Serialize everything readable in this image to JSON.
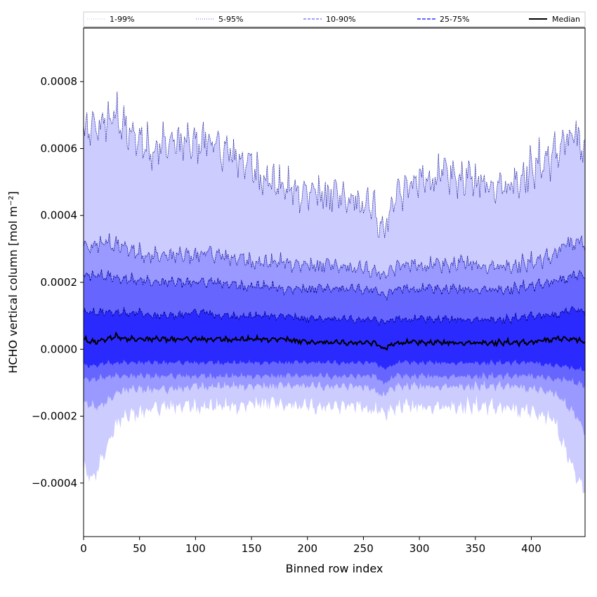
{
  "chart_data": {
    "type": "area",
    "xlabel": "Binned row index",
    "ylabel": "HCHO vertical column [mol m⁻²]",
    "xlim": [
      0,
      448
    ],
    "ylim": [
      -0.00056,
      0.00096
    ],
    "x_ticks": [
      0,
      50,
      100,
      150,
      200,
      250,
      300,
      350,
      400
    ],
    "x_tick_labels": [
      "0",
      "50",
      "100",
      "150",
      "200",
      "250",
      "300",
      "350",
      "400"
    ],
    "y_ticks": [
      -0.0004,
      -0.0002,
      0.0,
      0.0002,
      0.0004,
      0.0006,
      0.0008
    ],
    "y_tick_labels": [
      "−0.0004",
      "−0.0002",
      "0.0000",
      "0.0002",
      "0.0004",
      "0.0006",
      "0.0008"
    ],
    "grid": false,
    "legend": {
      "placement": "top",
      "entries": [
        {
          "label": "1-99%",
          "color": "#c8c8ff",
          "style": "dotted"
        },
        {
          "label": "5-95%",
          "color": "#8080ff",
          "style": "dotted"
        },
        {
          "label": "10-90%",
          "color": "#6666ff",
          "style": "dashed"
        },
        {
          "label": "25-75%",
          "color": "#3333ff",
          "style": "dashed"
        },
        {
          "label": "Median",
          "color": "#000000",
          "style": "solid"
        }
      ]
    },
    "colors": {
      "band_1_99": "#ccccff",
      "band_5_95": "#9999ff",
      "band_10_90": "#6666ff",
      "band_25_75": "#2a2aff",
      "band_line": "#00008b",
      "median": "#000000"
    },
    "key_x": [
      0,
      10,
      20,
      30,
      40,
      50,
      60,
      80,
      100,
      110,
      120,
      140,
      160,
      180,
      200,
      220,
      240,
      260,
      268,
      280,
      300,
      320,
      340,
      360,
      380,
      400,
      420,
      430,
      440,
      448
    ],
    "series": [
      {
        "name": "1-99% upper",
        "values": [
          0.00064,
          0.00066,
          0.00068,
          0.0007,
          0.00064,
          0.00063,
          0.0006,
          0.00062,
          0.00061,
          0.00063,
          0.0006,
          0.00057,
          0.00052,
          0.00048,
          0.00047,
          0.00046,
          0.00044,
          0.00042,
          0.00036,
          0.00047,
          0.0005,
          0.00052,
          0.00051,
          0.0005,
          0.00049,
          0.00054,
          0.00058,
          0.00062,
          0.00063,
          0.0006
        ]
      },
      {
        "name": "5-95% upper",
        "values": [
          0.0003,
          0.00031,
          0.00032,
          0.00031,
          0.0003,
          0.00029,
          0.00028,
          0.00028,
          0.00028,
          0.00029,
          0.00028,
          0.00027,
          0.00026,
          0.00026,
          0.00025,
          0.00025,
          0.00024,
          0.00024,
          0.00022,
          0.00025,
          0.00025,
          0.00025,
          0.00026,
          0.00025,
          0.00025,
          0.00026,
          0.00028,
          0.00031,
          0.00032,
          0.00031
        ]
      },
      {
        "name": "10-90% upper",
        "values": [
          0.00022,
          0.00022,
          0.00022,
          0.00021,
          0.00021,
          0.00021,
          0.0002,
          0.0002,
          0.0002,
          0.0002,
          0.0002,
          0.00019,
          0.00019,
          0.00018,
          0.00018,
          0.00018,
          0.00018,
          0.00018,
          0.00016,
          0.00018,
          0.00018,
          0.00018,
          0.00018,
          0.00018,
          0.00018,
          0.00019,
          0.0002,
          0.00021,
          0.00022,
          0.00022
        ]
      },
      {
        "name": "25-75% upper",
        "values": [
          0.00011,
          0.00011,
          0.00011,
          0.00011,
          0.00011,
          0.00011,
          0.0001,
          0.0001,
          0.00011,
          0.00011,
          0.0001,
          0.0001,
          0.0001,
          0.0001,
          9e-05,
          9e-05,
          9e-05,
          9e-05,
          8e-05,
          9e-05,
          9e-05,
          9e-05,
          9e-05,
          9e-05,
          9e-05,
          0.0001,
          0.0001,
          0.00011,
          0.00012,
          0.00011
        ]
      },
      {
        "name": "Median",
        "values": [
          3e-05,
          2e-05,
          3e-05,
          4e-05,
          3e-05,
          3e-05,
          3e-05,
          3e-05,
          3e-05,
          3e-05,
          3e-05,
          3e-05,
          3e-05,
          3e-05,
          2e-05,
          2e-05,
          2e-05,
          2e-05,
          0.0,
          2e-05,
          2e-05,
          2e-05,
          2e-05,
          2e-05,
          2e-05,
          2e-05,
          3e-05,
          3e-05,
          3e-05,
          2e-05
        ]
      },
      {
        "name": "25-75% lower",
        "values": [
          -5e-05,
          -5e-05,
          -4e-05,
          -4e-05,
          -4e-05,
          -4e-05,
          -4e-05,
          -4e-05,
          -4e-05,
          -4e-05,
          -4e-05,
          -4e-05,
          -4e-05,
          -4e-05,
          -4e-05,
          -4e-05,
          -4e-05,
          -4e-05,
          -6e-05,
          -4e-05,
          -4e-05,
          -4e-05,
          -4e-05,
          -4e-05,
          -4e-05,
          -4e-05,
          -5e-05,
          -5e-05,
          -6e-05,
          -6e-05
        ]
      },
      {
        "name": "10-90% lower",
        "values": [
          -9e-05,
          -9e-05,
          -8e-05,
          -8e-05,
          -8e-05,
          -8e-05,
          -8e-05,
          -8e-05,
          -8e-05,
          -8e-05,
          -8e-05,
          -8e-05,
          -8e-05,
          -8e-05,
          -8e-05,
          -8e-05,
          -8e-05,
          -8e-05,
          -0.0001,
          -8e-05,
          -8e-05,
          -8e-05,
          -8e-05,
          -8e-05,
          -8e-05,
          -8e-05,
          -9e-05,
          -9e-05,
          -0.0001,
          -0.00011
        ]
      },
      {
        "name": "5-95% lower",
        "values": [
          -0.00016,
          -0.00017,
          -0.00016,
          -0.00013,
          -0.00012,
          -0.00012,
          -0.00012,
          -0.00012,
          -0.00011,
          -0.00011,
          -0.00011,
          -0.00011,
          -0.00011,
          -0.00011,
          -0.00011,
          -0.00011,
          -0.00011,
          -0.00012,
          -0.00014,
          -0.00011,
          -0.00011,
          -0.00011,
          -0.00011,
          -0.00011,
          -0.00011,
          -0.00012,
          -0.00013,
          -0.00016,
          -0.0002,
          -0.00025
        ]
      },
      {
        "name": "1-99% lower",
        "values": [
          -0.00036,
          -0.00038,
          -0.0003,
          -0.00022,
          -0.0002,
          -0.00019,
          -0.00018,
          -0.00017,
          -0.00017,
          -0.00017,
          -0.00017,
          -0.00017,
          -0.00016,
          -0.00017,
          -0.00017,
          -0.00017,
          -0.00017,
          -0.00018,
          -0.0002,
          -0.00017,
          -0.00017,
          -0.00017,
          -0.00017,
          -0.00017,
          -0.00018,
          -0.00019,
          -0.00021,
          -0.0003,
          -0.00038,
          -0.00042
        ]
      }
    ]
  }
}
